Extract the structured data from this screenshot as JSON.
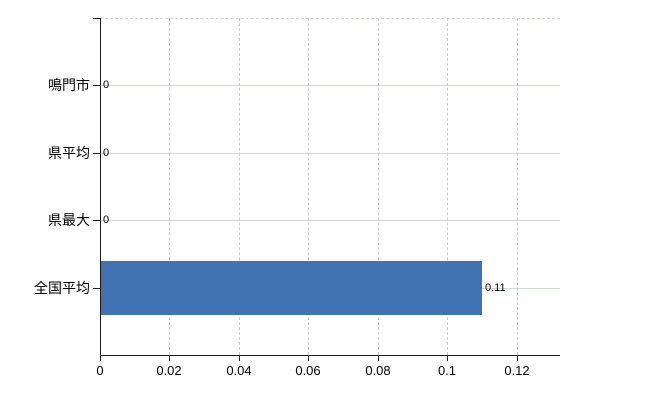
{
  "chart_data": {
    "type": "bar",
    "orientation": "horizontal",
    "title": "",
    "xlabel": "",
    "ylabel": "",
    "legend": null,
    "grid": true,
    "categories": [
      "鳴門市",
      "県平均",
      "県最大",
      "全国平均"
    ],
    "values": [
      0,
      0,
      0,
      0.11
    ],
    "value_labels": [
      "0",
      "0",
      "0",
      "0.11"
    ],
    "x_ticks": [
      0,
      0.02,
      0.04,
      0.06,
      0.08,
      0.1,
      0.12
    ],
    "x_tick_labels": [
      "0",
      "0.02",
      "0.04",
      "0.06",
      "0.08",
      "0.1",
      "0.12"
    ],
    "xlim": [
      0,
      0.1325
    ],
    "colors": {
      "bar": "#4172b2",
      "axis": "#1c1c1c",
      "text": "#000000",
      "h_grid": "#cfd9cf",
      "v_grid": "#d2c7cf",
      "top_border": "#d5d1ca",
      "background": "#ffffff"
    }
  }
}
